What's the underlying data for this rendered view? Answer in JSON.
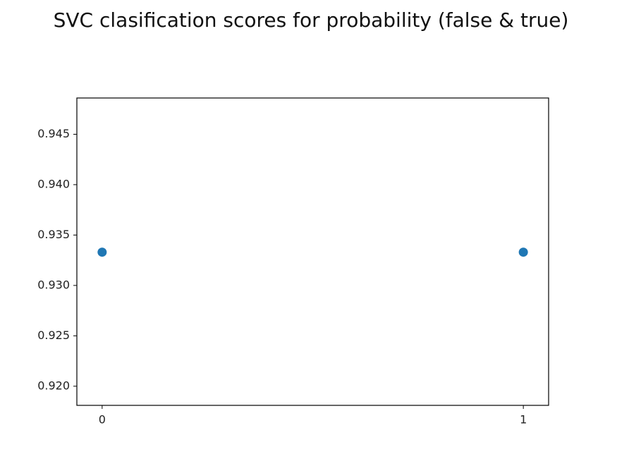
{
  "chart_data": {
    "type": "scatter",
    "title": "SVC clasification scores for probability (false & true)",
    "x": [
      0,
      1
    ],
    "values": [
      0.9333,
      0.9333
    ],
    "color": "#1f77b4",
    "xlim": [
      -0.06,
      1.06
    ],
    "xticks": [
      0,
      1
    ],
    "ylim": [
      0.9181,
      0.9486
    ],
    "yticks": [
      {
        "value": 0.92,
        "label": "0.920"
      },
      0.925,
      {
        "value": 0.93,
        "label": "0.930"
      },
      0.935,
      {
        "value": 0.94,
        "label": "0.940"
      },
      0.945
    ],
    "grid": false
  }
}
